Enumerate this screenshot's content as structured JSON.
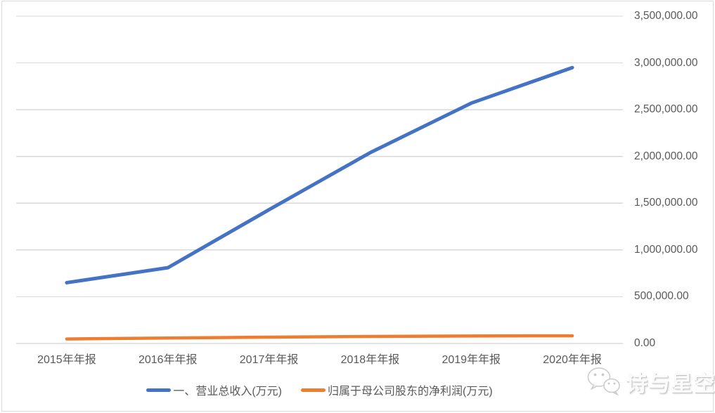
{
  "chart_data": {
    "type": "line",
    "categories": [
      "2015年年报",
      "2016年年报",
      "2017年年报",
      "2018年年报",
      "2019年年报",
      "2020年年报"
    ],
    "series": [
      {
        "name": "一、营业总收入(万元)",
        "color": "#4472C4",
        "line_width": 5,
        "values": [
          650000,
          810000,
          1430000,
          2040000,
          2570000,
          2950000
        ]
      },
      {
        "name": "归属于母公司股东的净利润(万元)",
        "color": "#ED7D31",
        "line_width": 4.5,
        "values": [
          48000,
          58000,
          68000,
          75000,
          80000,
          82000
        ]
      }
    ],
    "ylim": [
      0,
      3500000
    ],
    "ytick_interval": 500000,
    "ytick_labels": [
      "0.00",
      "500,000.00",
      "1,000,000.00",
      "1,500,000.00",
      "2,000,000.00",
      "2,500,000.00",
      "3,000,000.00",
      "3,500,000.00"
    ],
    "grid": "horizontal",
    "gridline_color": "#D9D9D9",
    "axis_line_color": "#C8C8C8",
    "label_color": "#595959",
    "legend_position": "bottom",
    "title": "",
    "xlabel": "",
    "ylabel": ""
  },
  "watermark": {
    "text": "诗与星空",
    "icon": "wechat-icon"
  }
}
